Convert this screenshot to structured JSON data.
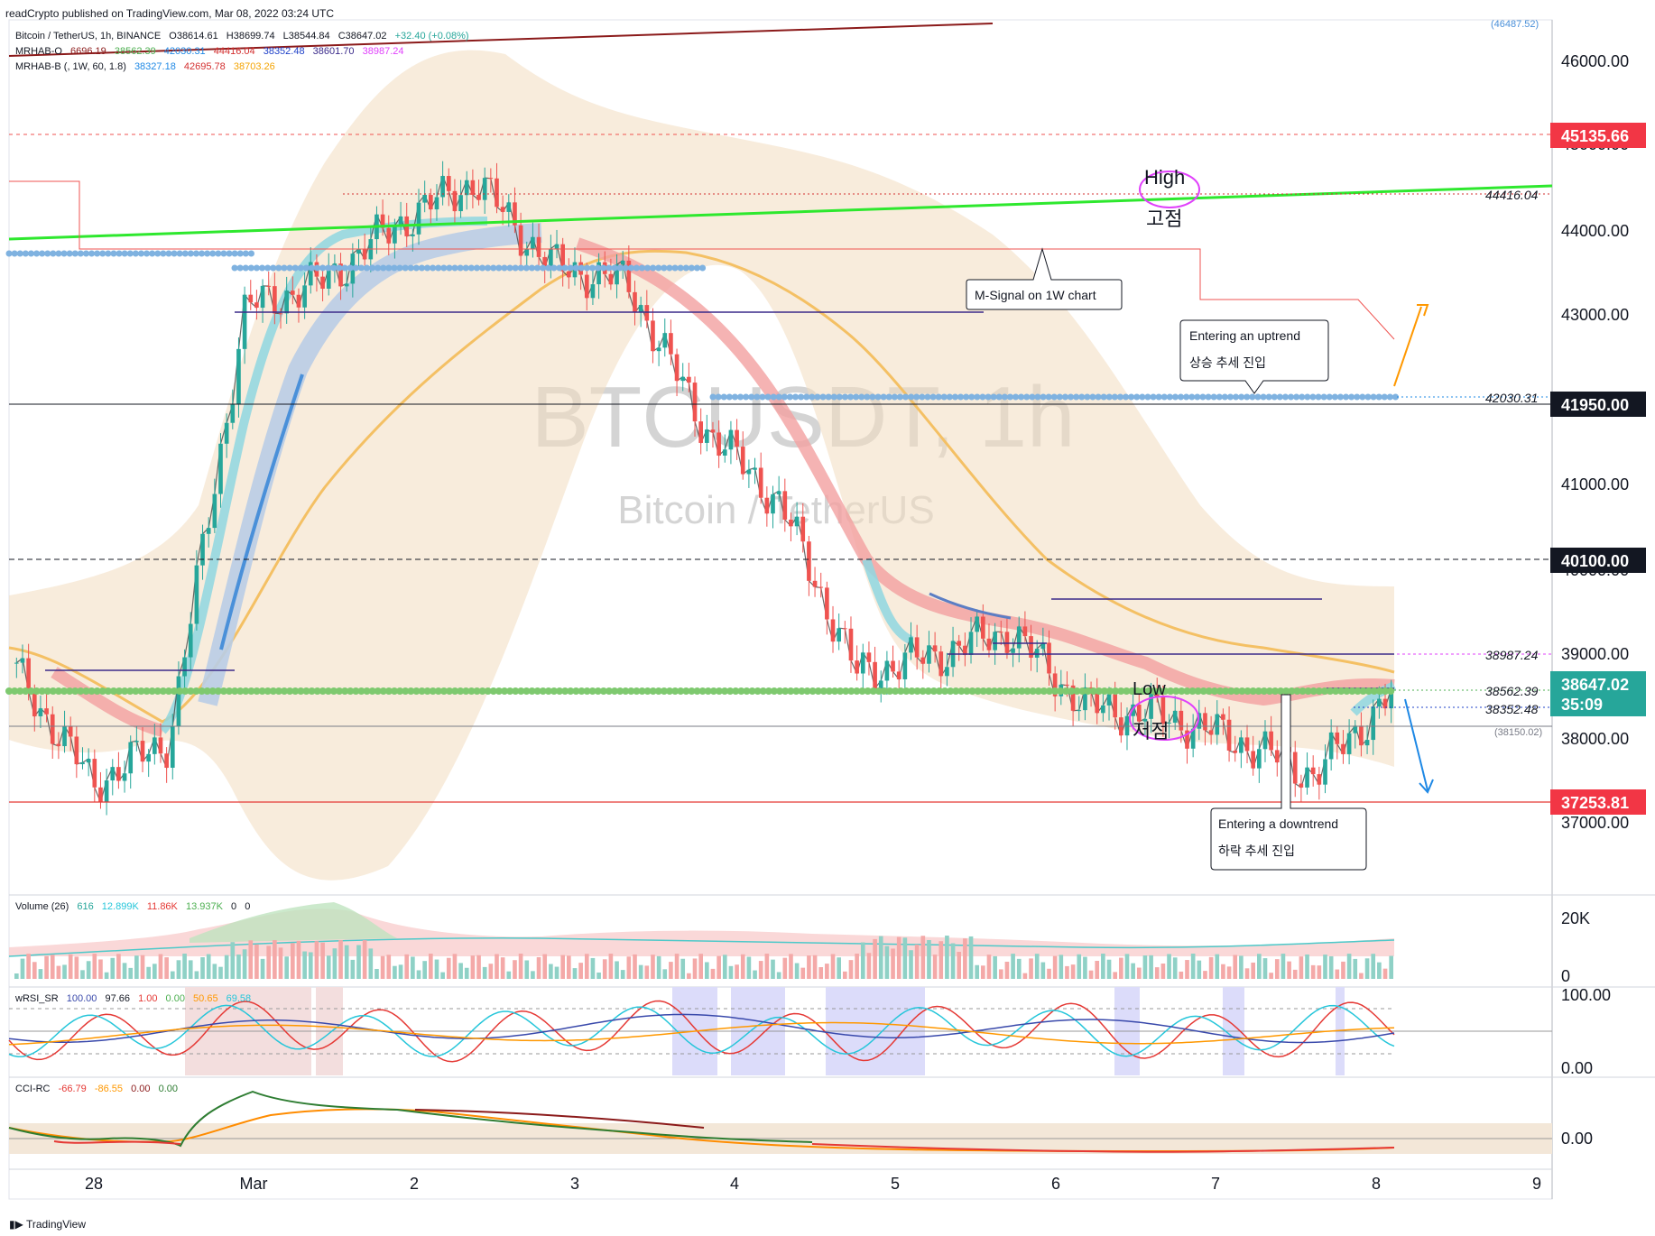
{
  "header": {
    "publisher": "readCrypto published on TradingView.com, Mar 08, 2022 03:24 UTC"
  },
  "footer": {
    "brand": "TradingView"
  },
  "watermark": {
    "symbol": "BTCUSDT, 1h",
    "name": "Bitcoin / TetherUS"
  },
  "legend": {
    "main": {
      "title": "Bitcoin / TetherUS, 1h, BINANCE",
      "o": "O38614.61",
      "h": "H38699.74",
      "l": "L38544.84",
      "c": "C38647.02",
      "chg": "+32.40 (+0.08%)"
    },
    "mrhab_o": {
      "title": "MRHAB-O",
      "v1": "6696.19",
      "v2": "38562.39",
      "v3": "42030.31",
      "v4": "44416.04",
      "v5": "38352.48",
      "v6": "38601.70",
      "v7": "38987.24"
    },
    "mrhab_b": {
      "title": "MRHAB-B (, 1W, 60, 1.8)",
      "v1": "38327.18",
      "v2": "42695.78",
      "v3": "38703.26"
    },
    "volume": {
      "title": "Volume (26)",
      "v1": "616",
      "v2": "12.899K",
      "v3": "11.86K",
      "v4": "13.937K",
      "v5": "0",
      "v6": "0"
    },
    "wrsi": {
      "title": "wRSI_SR",
      "v1": "100.00",
      "v2": "97.66",
      "v3": "1.00",
      "v4": "0.00",
      "v5": "50.65",
      "v6": "69.58"
    },
    "cci": {
      "title": "CCI-RC",
      "v1": "-66.79",
      "v2": "-86.55",
      "v3": "0.00",
      "v4": "0.00"
    }
  },
  "colors": {
    "up": "#26a69a",
    "down": "#ef5350",
    "green_line": "#2ee82e",
    "dot_blue": "#7fb2e0",
    "dot_green": "#7ec96f",
    "orange_ma": "#f4c064",
    "band": "#f2dcc0"
  },
  "annotations": {
    "high": "High",
    "high_ko": "고점",
    "low": "Low",
    "low_ko": "저점",
    "msignal": "M-Signal on 1W chart",
    "uptrend": "Entering an uptrend",
    "uptrend_ko": "상승 추세 진입",
    "downtrend": "Entering a downtrend",
    "downtrend_ko": "하락 추세 진입"
  },
  "price_axis": {
    "ticks": [
      "46000.00",
      "45000.00",
      "44000.00",
      "43000.00",
      "41000.00",
      "40000.00",
      "39000.00",
      "38000.00",
      "37000.00"
    ],
    "top_faint": "(46487.52)",
    "badges": [
      {
        "value": "45135.66",
        "type": "red"
      },
      {
        "value": "41950.00",
        "type": "black"
      },
      {
        "value": "40100.00",
        "type": "black"
      },
      {
        "value": "38647.02",
        "type": "teal",
        "sub": "35:09"
      },
      {
        "value": "37253.81",
        "type": "red"
      }
    ],
    "line_labels": [
      "44416.04",
      "42030.31",
      "38987.24",
      "38562.39",
      "38352.48",
      "(38150.02)"
    ]
  },
  "sub_axes": {
    "volume": [
      "20K",
      "0"
    ],
    "rsi": [
      "100.00",
      "0.00"
    ],
    "cci": [
      "0.00"
    ]
  },
  "time_axis": [
    "28",
    "Mar",
    "2",
    "3",
    "4",
    "5",
    "6",
    "7",
    "8",
    "9"
  ],
  "chart_data": {
    "type": "candlestick",
    "symbol": "BTCUSDT",
    "interval": "1h",
    "ylim": [
      36200,
      46400
    ],
    "closes_approx": [
      {
        "t": "Feb 27 20:00",
        "c": 38900
      },
      {
        "t": "Feb 28 06:00",
        "c": 37600
      },
      {
        "t": "Feb 28 18:00",
        "c": 38100
      },
      {
        "t": "Mar 01 00:00",
        "c": 43200
      },
      {
        "t": "Mar 01 12:00",
        "c": 43500
      },
      {
        "t": "Mar 02 00:00",
        "c": 44200
      },
      {
        "t": "Mar 02 12:00",
        "c": 44700
      },
      {
        "t": "Mar 03 00:00",
        "c": 43700
      },
      {
        "t": "Mar 03 12:00",
        "c": 43500
      },
      {
        "t": "Mar 04 00:00",
        "c": 41800
      },
      {
        "t": "Mar 04 12:00",
        "c": 40900
      },
      {
        "t": "Mar 05 00:00",
        "c": 38900
      },
      {
        "t": "Mar 05 12:00",
        "c": 39100
      },
      {
        "t": "Mar 06 00:00",
        "c": 39400
      },
      {
        "t": "Mar 06 12:00",
        "c": 38500
      },
      {
        "t": "Mar 07 00:00",
        "c": 38400
      },
      {
        "t": "Mar 07 12:00",
        "c": 38100
      },
      {
        "t": "Mar 08 00:00",
        "c": 37700
      },
      {
        "t": "Mar 08 03:00",
        "c": 38647
      }
    ]
  }
}
